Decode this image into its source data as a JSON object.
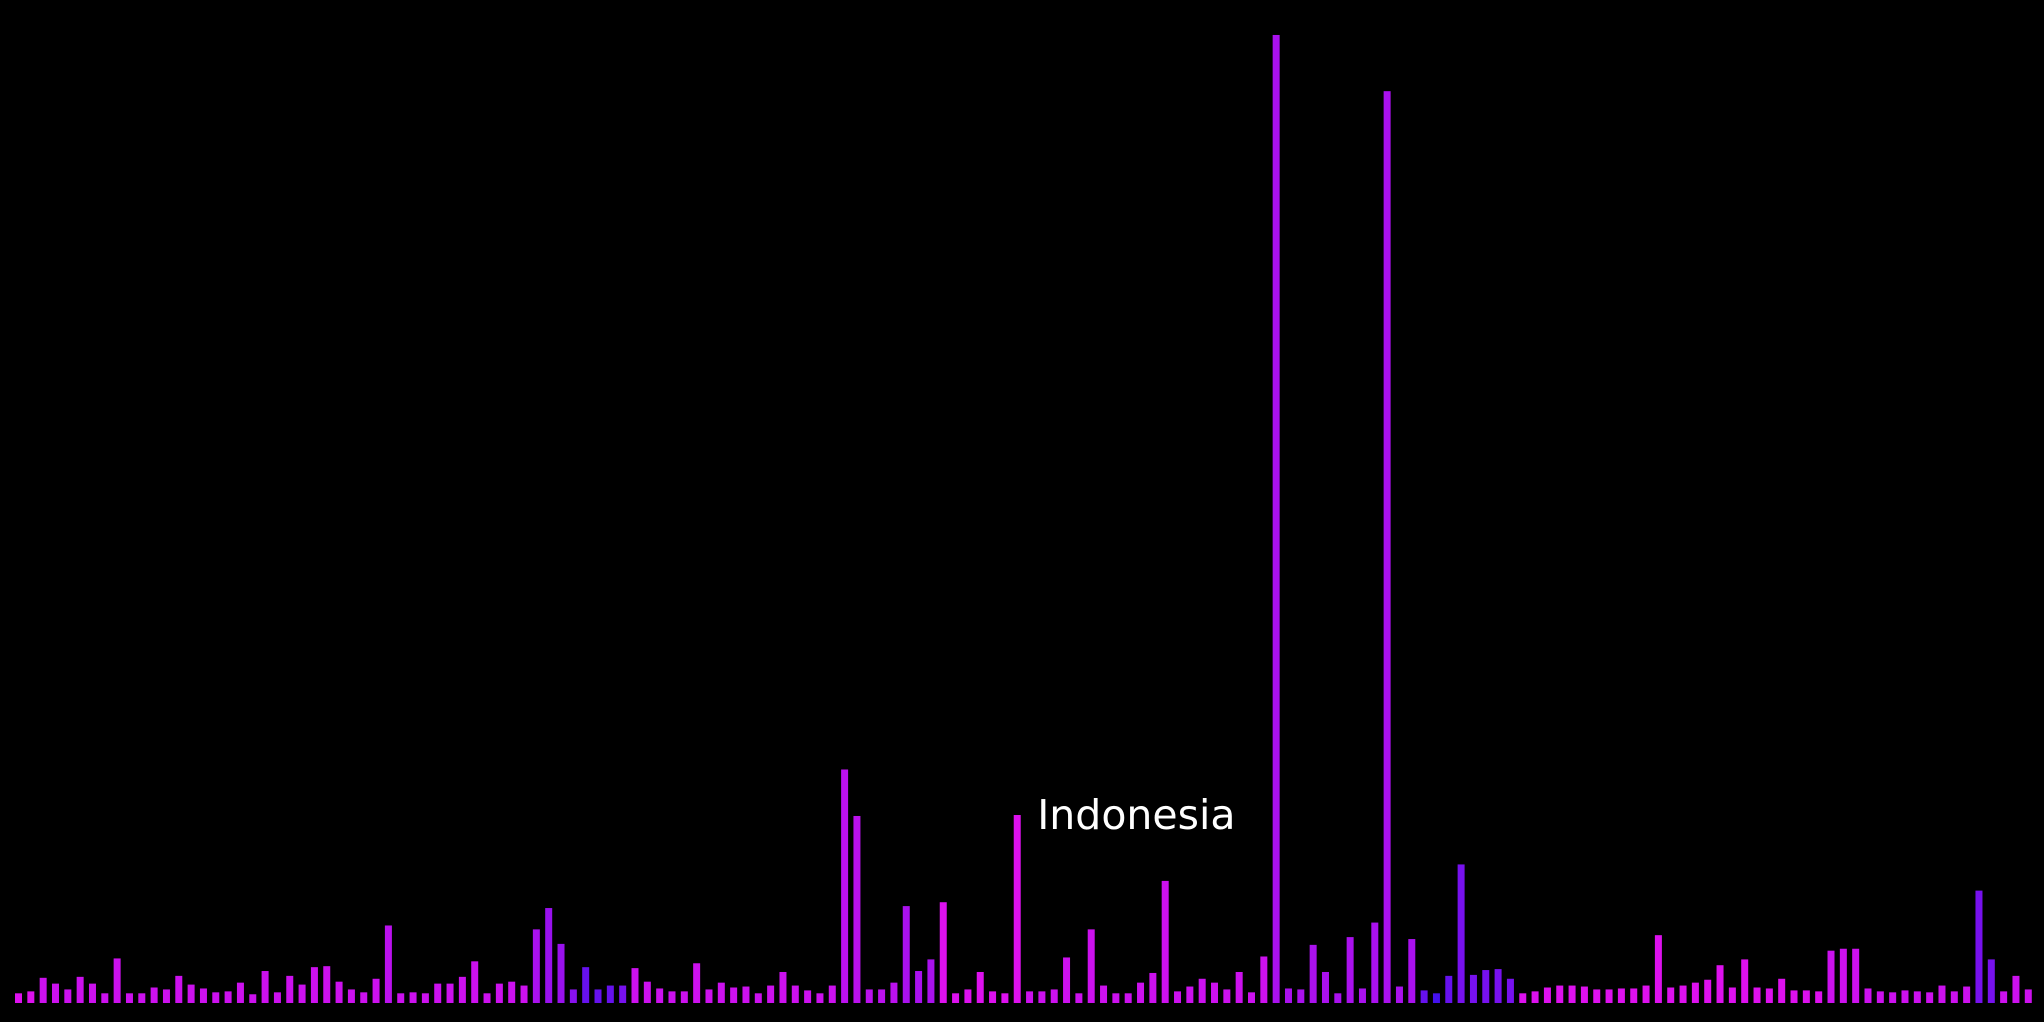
{
  "chart_data": {
    "type": "bar",
    "title": "",
    "xlabel": "",
    "ylabel": "",
    "grid": false,
    "legend": "none",
    "background": "#000000",
    "ylim": [
      0,
      1000
    ],
    "values": [
      10,
      12,
      26,
      20,
      14,
      27,
      20,
      10,
      46,
      10,
      10,
      16,
      14,
      28,
      19,
      15,
      11,
      12,
      21,
      9,
      33,
      11,
      28,
      19,
      37,
      38,
      22,
      14,
      11,
      25,
      80,
      10,
      11,
      10,
      20,
      20,
      27,
      43,
      10,
      20,
      22,
      18,
      76,
      98,
      61,
      14,
      37,
      14,
      18,
      18,
      36,
      22,
      15,
      12,
      12,
      41,
      14,
      21,
      16,
      17,
      10,
      18,
      32,
      18,
      13,
      10,
      18,
      241,
      193,
      14,
      14,
      21,
      100,
      33,
      45,
      104,
      10,
      14,
      32,
      12,
      10,
      194,
      12,
      12,
      14,
      47,
      10,
      76,
      18,
      10,
      10,
      21,
      31,
      126,
      12,
      17,
      25,
      21,
      14,
      32,
      11,
      48,
      999,
      15,
      14,
      60,
      32,
      10,
      68,
      15,
      83,
      941,
      17,
      66,
      13,
      10,
      28,
      143,
      29,
      34,
      35,
      25,
      10,
      12,
      16,
      18,
      18,
      17,
      14,
      14,
      15,
      15,
      18,
      70,
      16,
      18,
      21,
      24,
      39,
      16,
      45,
      16,
      15,
      25,
      13,
      13,
      12,
      54,
      56,
      56,
      15,
      12,
      11,
      13,
      12,
      11,
      18,
      12,
      17,
      116,
      45,
      12,
      28,
      14
    ],
    "colors": [
      "#dd11ee",
      "#dd11ee",
      "#cc11ee",
      "#cc11ee",
      "#cc11ee",
      "#cc11ee",
      "#cc11ee",
      "#cc11ee",
      "#cc11ee",
      "#cc11ee",
      "#cc11ee",
      "#cc11ee",
      "#cc11ee",
      "#cc11ee",
      "#cc11ee",
      "#cc11ee",
      "#cc11ee",
      "#cc11ee",
      "#cc11ee",
      "#cc11ee",
      "#cc11ee",
      "#cc11ee",
      "#cc11ee",
      "#cc11ee",
      "#cc11ee",
      "#cc11ee",
      "#cc11ee",
      "#cc11ee",
      "#cc11ee",
      "#cc11ee",
      "#bb11ee",
      "#cc11ee",
      "#cc11ee",
      "#cc11ee",
      "#cc11ee",
      "#cc11ee",
      "#cc11ee",
      "#cc11ee",
      "#cc11ee",
      "#cc11ee",
      "#cc11ee",
      "#cc11ee",
      "#aa11ee",
      "#9911ee",
      "#9911ee",
      "#8811ee",
      "#6611ee",
      "#6611ee",
      "#6611ee",
      "#7711ee",
      "#cc11ee",
      "#cc11ee",
      "#cc11ee",
      "#cc11ee",
      "#cc11ee",
      "#cc11ee",
      "#cc11ee",
      "#cc11ee",
      "#cc11ee",
      "#cc11ee",
      "#cc11ee",
      "#cc11ee",
      "#cc11ee",
      "#cc11ee",
      "#cc11ee",
      "#cc11ee",
      "#cc11ee",
      "#bb11ee",
      "#bb11ee",
      "#bb11ee",
      "#bb11ee",
      "#bb11ee",
      "#aa11ee",
      "#aa11ee",
      "#aa11ee",
      "#dd11ee",
      "#dd11ee",
      "#dd11ee",
      "#dd11ee",
      "#dd11ee",
      "#dd11ee",
      "#dd11ee",
      "#cc11ee",
      "#cc11ee",
      "#cc11ee",
      "#cc11ee",
      "#cc11ee",
      "#cc11ee",
      "#cc11ee",
      "#cc11ee",
      "#cc11ee",
      "#cc11ee",
      "#cc11ee",
      "#cc11ee",
      "#cc11ee",
      "#cc11ee",
      "#cc11ee",
      "#cc11ee",
      "#cc11ee",
      "#cc11ee",
      "#cc11ee",
      "#cc11ee",
      "#aa11ee",
      "#aa11ee",
      "#aa11ee",
      "#aa11ee",
      "#aa11ee",
      "#aa11ee",
      "#aa11ee",
      "#aa11ee",
      "#aa11ee",
      "#aa11ee",
      "#aa11ee",
      "#aa11ee",
      "#6611ee",
      "#4411ee",
      "#6611ee",
      "#7711ee",
      "#7711ee",
      "#7711ee",
      "#7711ee",
      "#7711ee",
      "#dd11ee",
      "#dd11ee",
      "#dd11ee",
      "#dd11ee",
      "#dd11ee",
      "#dd11ee",
      "#dd11ee",
      "#dd11ee",
      "#dd11ee",
      "#dd11ee",
      "#dd11ee",
      "#dd11ee",
      "#dd11ee",
      "#dd11ee",
      "#dd11ee",
      "#dd11ee",
      "#dd11ee",
      "#dd11ee",
      "#dd11ee",
      "#dd11ee",
      "#dd11ee",
      "#dd11ee",
      "#dd11ee",
      "#dd11ee",
      "#dd11ee",
      "#cc11ee",
      "#cc11ee",
      "#cc11ee",
      "#cc11ee",
      "#cc11ee",
      "#cc11ee",
      "#cc11ee",
      "#cc11ee",
      "#cc11ee",
      "#cc11ee",
      "#cc11ee",
      "#cc11ee",
      "#7711ee",
      "#7711ee",
      "#cc11ee",
      "#cc11ee",
      "#cc11ee"
    ],
    "annotations": [
      {
        "index": 81,
        "text": "Indonesia"
      }
    ]
  }
}
